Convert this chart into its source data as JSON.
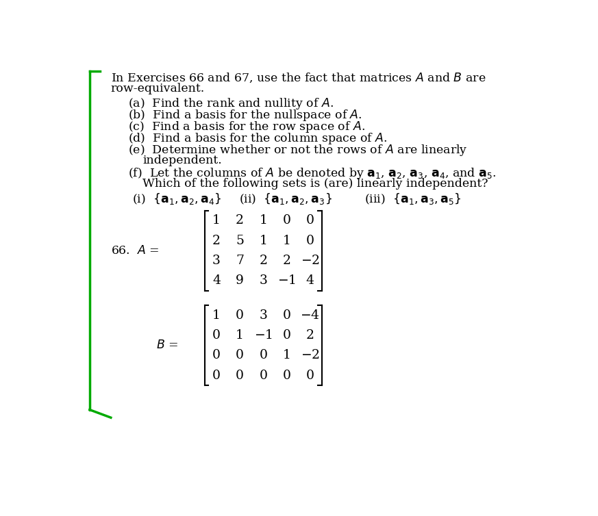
{
  "bg_color": "#ffffff",
  "text_color": "#000000",
  "fig_width": 8.73,
  "fig_height": 7.54,
  "matrix_A": [
    [
      1,
      2,
      1,
      0,
      0
    ],
    [
      2,
      5,
      1,
      1,
      0
    ],
    [
      3,
      7,
      2,
      2,
      -2
    ],
    [
      4,
      9,
      3,
      -1,
      4
    ]
  ],
  "matrix_B": [
    [
      1,
      0,
      3,
      0,
      -4
    ],
    [
      0,
      1,
      -1,
      0,
      2
    ],
    [
      0,
      0,
      0,
      1,
      -2
    ],
    [
      0,
      0,
      0,
      0,
      0
    ]
  ],
  "fontsize_main": 12.5,
  "fontsize_matrix": 13.5
}
